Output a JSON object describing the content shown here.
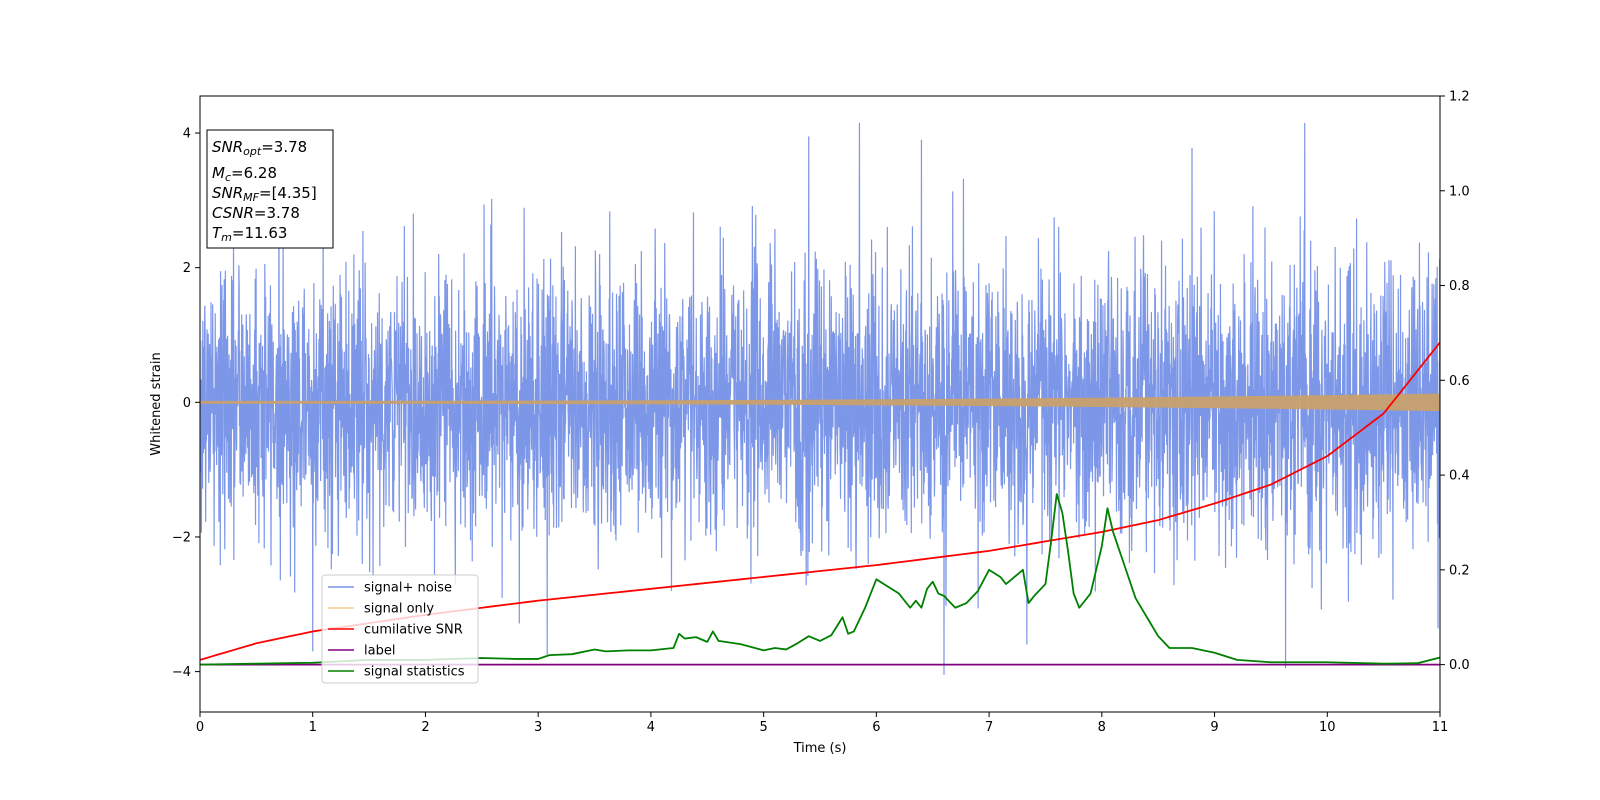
{
  "chart_data": {
    "type": "line",
    "xlabel": "Time (s)",
    "ylabel": "Whitened strain",
    "xlim": [
      0,
      11
    ],
    "ylim_left": [
      -4.6,
      4.55
    ],
    "ylim_right": [
      -0.1,
      1.2
    ],
    "x_ticks": [
      0,
      1,
      2,
      3,
      4,
      5,
      6,
      7,
      8,
      9,
      10,
      11
    ],
    "y_left_ticks": [
      -4,
      -2,
      0,
      2,
      4
    ],
    "y_right_ticks": [
      "0.0",
      "0.2",
      "0.4",
      "0.6",
      "0.8",
      "1.0",
      "1.2"
    ],
    "grid": false,
    "legend_position": "lower-left",
    "stats_box": {
      "snr_opt": {
        "sym": "SNR",
        "sub": "opt",
        "val": "=3.78"
      },
      "mc": {
        "sym": "M",
        "sub": "c",
        "val": "=6.28"
      },
      "snr_mf": {
        "sym": "SNR",
        "sub": "MF",
        "val": "=[4.35]"
      },
      "csnr": {
        "sym": "CSNR",
        "sub": "",
        "val": "=3.78"
      },
      "tm": {
        "sym": "T",
        "sub": "m",
        "val": "=11.63"
      }
    },
    "series": [
      {
        "name": "signal+ noise",
        "color": "#7994e8",
        "axis": "left",
        "noise_std": 1.0,
        "peaks": [
          {
            "x": 5.4,
            "y": 3.95
          },
          {
            "x": 5.85,
            "y": 4.15
          },
          {
            "x": 6.4,
            "y": 3.9
          },
          {
            "x": 9.8,
            "y": 4.15
          },
          {
            "x": 8.8,
            "y": 3.78
          },
          {
            "x": 6.6,
            "y": -4.05
          },
          {
            "x": 9.63,
            "y": -3.95
          },
          {
            "x": 3.08,
            "y": -3.75
          },
          {
            "x": 8.55,
            "y": 0.6
          },
          {
            "x": 1.0,
            "y": -3.7
          }
        ]
      },
      {
        "name": "signal only",
        "color": "#f5c26b",
        "axis": "left",
        "amplitude_start": 0.02,
        "amplitude_end": 0.13
      },
      {
        "name": "cumilative SNR",
        "color": "#ff0000",
        "axis": "right",
        "x": [
          0,
          0.5,
          1,
          2,
          3,
          4,
          5,
          6,
          7,
          8,
          8.5,
          9,
          9.5,
          10,
          10.5,
          11
        ],
        "y": [
          0.01,
          0.045,
          0.07,
          0.105,
          0.135,
          0.16,
          0.185,
          0.21,
          0.24,
          0.28,
          0.305,
          0.34,
          0.38,
          0.44,
          0.53,
          0.68
        ]
      },
      {
        "name": "label",
        "color": "#800080",
        "axis": "right",
        "x": [
          0,
          11
        ],
        "y": [
          0.0,
          0.0
        ]
      },
      {
        "name": "signal statistics",
        "color": "#008000",
        "axis": "right",
        "x": [
          0,
          0.5,
          1,
          1.5,
          2,
          2.5,
          2.8,
          3.0,
          3.1,
          3.3,
          3.5,
          3.6,
          3.8,
          4.0,
          4.2,
          4.25,
          4.3,
          4.4,
          4.5,
          4.55,
          4.6,
          4.8,
          5.0,
          5.1,
          5.2,
          5.3,
          5.4,
          5.5,
          5.6,
          5.7,
          5.75,
          5.8,
          5.9,
          6.0,
          6.2,
          6.3,
          6.35,
          6.4,
          6.45,
          6.5,
          6.55,
          6.6,
          6.7,
          6.8,
          6.9,
          7.0,
          7.1,
          7.15,
          7.2,
          7.3,
          7.35,
          7.4,
          7.5,
          7.55,
          7.6,
          7.65,
          7.7,
          7.75,
          7.8,
          7.9,
          8.0,
          8.05,
          8.1,
          8.2,
          8.3,
          8.4,
          8.5,
          8.6,
          8.8,
          9.0,
          9.2,
          9.5,
          10.0,
          10.5,
          10.8,
          11.0
        ],
        "y": [
          0.0,
          0.002,
          0.004,
          0.01,
          0.01,
          0.014,
          0.012,
          0.012,
          0.02,
          0.022,
          0.032,
          0.028,
          0.03,
          0.03,
          0.035,
          0.065,
          0.055,
          0.058,
          0.048,
          0.07,
          0.05,
          0.043,
          0.03,
          0.035,
          0.032,
          0.045,
          0.06,
          0.05,
          0.062,
          0.1,
          0.065,
          0.07,
          0.12,
          0.18,
          0.15,
          0.12,
          0.135,
          0.12,
          0.16,
          0.175,
          0.15,
          0.145,
          0.12,
          0.13,
          0.155,
          0.2,
          0.185,
          0.17,
          0.18,
          0.2,
          0.13,
          0.145,
          0.17,
          0.26,
          0.36,
          0.32,
          0.24,
          0.15,
          0.12,
          0.15,
          0.25,
          0.33,
          0.28,
          0.21,
          0.14,
          0.1,
          0.06,
          0.035,
          0.035,
          0.025,
          0.01,
          0.005,
          0.005,
          0.002,
          0.003,
          0.015
        ]
      }
    ]
  }
}
